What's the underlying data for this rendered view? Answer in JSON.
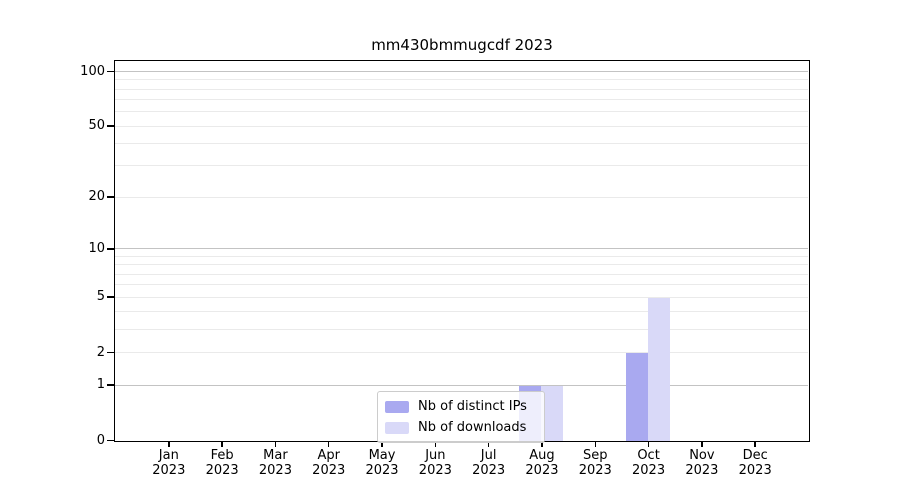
{
  "chart_data": {
    "type": "bar",
    "title": "mm430bmmugcdf 2023",
    "categories": [
      "Jan 2023",
      "Feb 2023",
      "Mar 2023",
      "Apr 2023",
      "May 2023",
      "Jun 2023",
      "Jul 2023",
      "Aug 2023",
      "Sep 2023",
      "Oct 2023",
      "Nov 2023",
      "Dec 2023"
    ],
    "series": [
      {
        "name": "Nb of distinct IPs",
        "color": "#a9a9f0",
        "values": [
          0,
          0,
          0,
          0,
          0,
          0,
          0,
          1,
          0,
          2,
          0,
          0
        ]
      },
      {
        "name": "Nb of downloads",
        "color": "#d9d9f8",
        "values": [
          0,
          0,
          0,
          0,
          0,
          0,
          0,
          1,
          0,
          5,
          0,
          0
        ]
      }
    ],
    "xlabel": "",
    "ylabel": "",
    "yscale": "log1p",
    "ylim": [
      0,
      113
    ],
    "yticks": [
      0,
      1,
      2,
      5,
      10,
      20,
      50,
      100
    ],
    "gridlines": {
      "major": [
        1,
        10,
        100
      ],
      "minor": [
        2,
        3,
        4,
        5,
        6,
        7,
        8,
        9,
        20,
        30,
        40,
        50,
        60,
        70,
        80,
        90
      ]
    },
    "legend": {
      "position": "lower-center-inside",
      "items": [
        "Nb of distinct IPs",
        "Nb of downloads"
      ]
    }
  }
}
